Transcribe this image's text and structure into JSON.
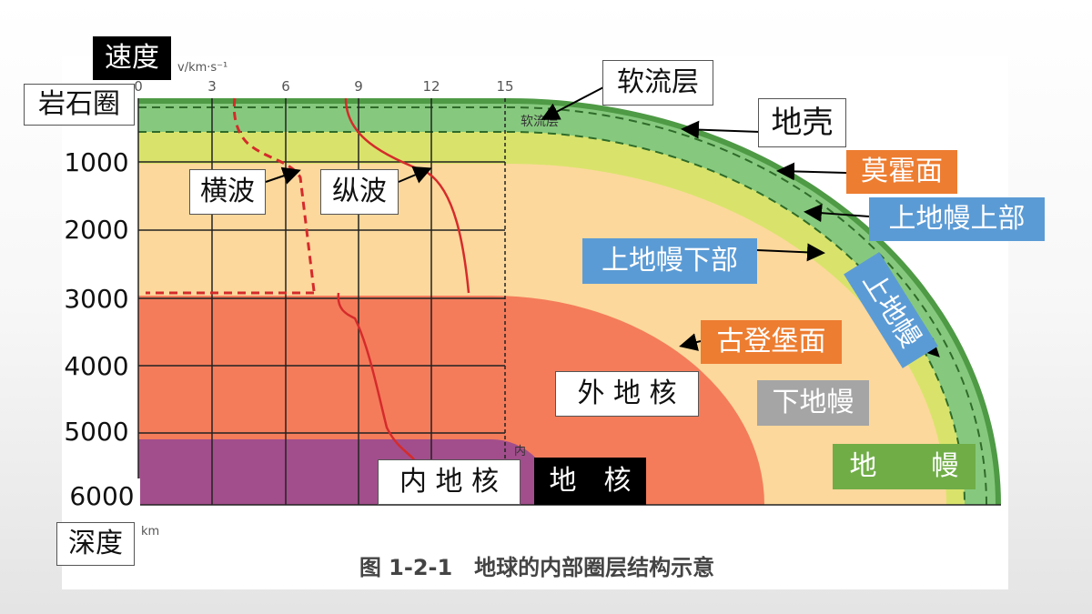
{
  "axis": {
    "velocity_label": "速度",
    "velocity_unit": "v/km·s⁻¹",
    "velocity_ticks": [
      "0",
      "3",
      "6",
      "9",
      "12",
      "15"
    ],
    "depth_label": "深度",
    "depth_unit": "km",
    "depth_ticks": [
      "1000",
      "2000",
      "3000",
      "4000",
      "5000",
      "6000"
    ]
  },
  "labels": {
    "lithosphere": "岩石圈",
    "s_wave": "横波",
    "p_wave": "纵波",
    "asthenosphere": "软流层",
    "crust": "地壳",
    "moho": "莫霍面",
    "upper_mantle_upper": "上地幔上部",
    "upper_mantle_lower": "上地幔下部",
    "upper_mantle": "上地幔",
    "gutenberg": "古登堡面",
    "outer_core": "外 地 核",
    "lower_mantle": "下地幔",
    "mantle": "地　　幔",
    "inner_core": "内 地 核",
    "core": "地　核"
  },
  "figure": {
    "asthenosphere_inner": "软流层",
    "inner_core_inner": "内",
    "caption": "图 1-2-1　地球的内部圈层结构示意"
  }
}
